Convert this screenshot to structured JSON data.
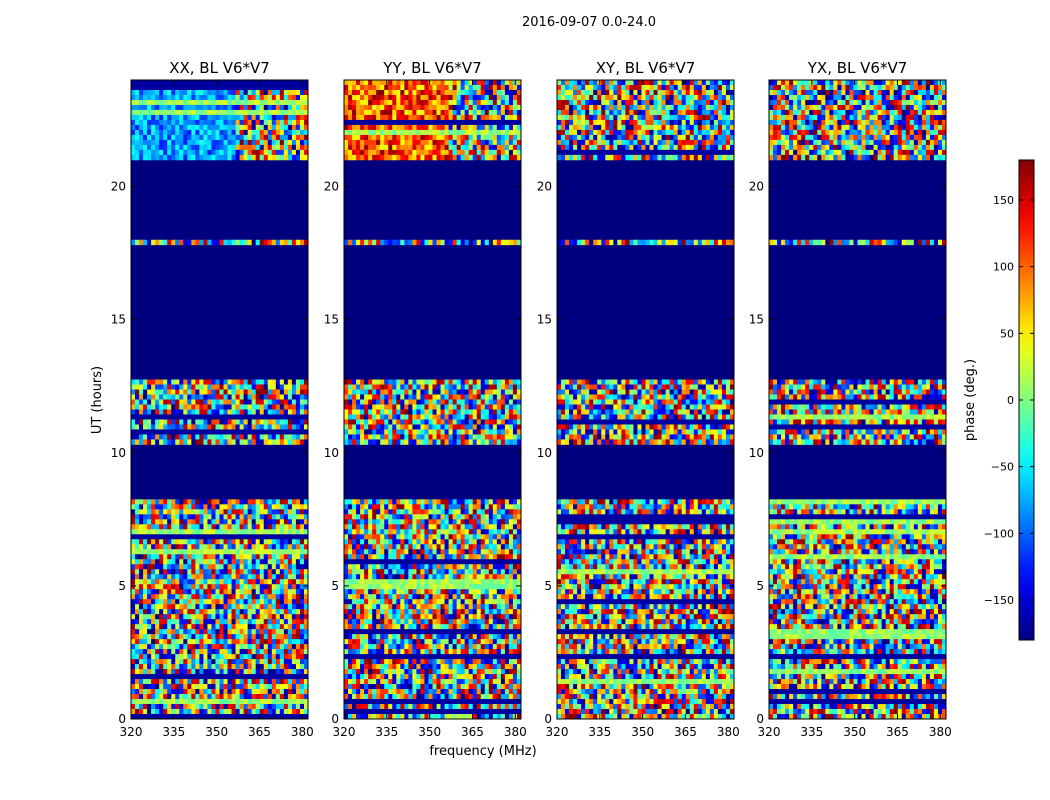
{
  "chart_data": {
    "type": "heatmap",
    "suptitle": "2016-09-07 0.0-24.0",
    "xlabel": "frequency (MHz)",
    "ylabel": "UT (hours)",
    "xlim": [
      320,
      382
    ],
    "ylim": [
      0,
      24
    ],
    "xticks": [
      320,
      335,
      350,
      365,
      380
    ],
    "yticks": [
      0,
      5,
      10,
      15,
      20
    ],
    "panels": [
      {
        "title": "XX, BL V6*V7"
      },
      {
        "title": "YY, BL V6*V7"
      },
      {
        "title": "XY, BL V6*V7"
      },
      {
        "title": "YX, BL V6*V7"
      }
    ],
    "colorbar": {
      "label": "phase (deg.)",
      "range": [
        -180,
        180
      ],
      "ticks": [
        -150,
        -100,
        -50,
        0,
        50,
        100,
        150
      ],
      "tick_labels": [
        "−150",
        "−100",
        "−50",
        "0",
        "50",
        "100",
        "150"
      ],
      "colormap": "jet"
    },
    "flagged_ranges_hours": [
      [
        12.7,
        17.8
      ],
      [
        17.95,
        21.05
      ],
      [
        8.25,
        10.3
      ]
    ],
    "colors": {
      "flagged": "#00007f",
      "frame": "#000000"
    }
  }
}
